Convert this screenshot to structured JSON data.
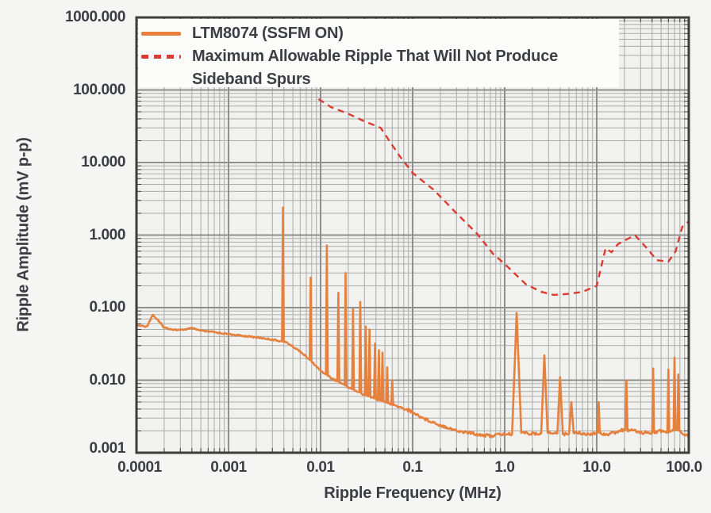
{
  "page": {
    "background": "#F5F5F3"
  },
  "colors": {
    "plot_bg": "#F1F1EF",
    "page_bg": "#F5F5F3",
    "legend_bg": "#FCFCFB",
    "frame": "#3D3D3D",
    "grid_minor": "#ABABAB",
    "grid_major": "#8E8E8E",
    "text": "#3B3E44",
    "orange": "#E5813C",
    "red": "#DE3B30"
  },
  "legend": {
    "item1_label": "LTM8074 (SSFM ON)",
    "item2_label_line1": "Maximum Allowable Ripple That Will Not Produce",
    "item2_label_line2": "Sideband Spurs"
  },
  "axes": {
    "x": {
      "scale": "log",
      "range": [
        0.0001,
        100
      ],
      "tick_labels": [
        "0.0001",
        "0.001",
        "0.01",
        "0.1",
        "1.0",
        "10.0",
        "100.0"
      ]
    },
    "y": {
      "scale": "log",
      "range": [
        0.001,
        1000
      ],
      "tick_labels": [
        "1000.000",
        "100.000",
        "10.000",
        "1.000",
        "0.100",
        "0.010",
        "0.001"
      ]
    }
  },
  "chart_data": {
    "type": "line",
    "xlabel": "Ripple Frequency (MHz)",
    "ylabel": "Ripple Amplitude (mV p-p)",
    "xscale": "log",
    "yscale": "log",
    "xlim": [
      0.0001,
      100
    ],
    "ylim": [
      0.001,
      1000
    ],
    "grid": true,
    "legend_position": "top-left",
    "series": [
      {
        "name": "LTM8074 (SSFM ON)",
        "color": "#E5813C",
        "style": "solid",
        "points": [
          [
            0.0001,
            0.057
          ],
          [
            0.00013,
            0.055
          ],
          [
            0.00015,
            0.08
          ],
          [
            0.00018,
            0.062
          ],
          [
            0.0002,
            0.053
          ],
          [
            0.00025,
            0.05
          ],
          [
            0.0003,
            0.049
          ],
          [
            0.0004,
            0.052
          ],
          [
            0.0005,
            0.048
          ],
          [
            0.0007,
            0.046
          ],
          [
            0.001,
            0.043
          ],
          [
            0.0014,
            0.041
          ],
          [
            0.002,
            0.039
          ],
          [
            0.0027,
            0.037
          ],
          [
            0.0035,
            0.035
          ],
          [
            0.0043,
            0.033
          ],
          [
            0.005,
            0.029
          ],
          [
            0.006,
            0.025
          ],
          [
            0.007,
            0.021
          ],
          [
            0.008,
            0.018
          ],
          [
            0.009,
            0.0155
          ],
          [
            0.01,
            0.0135
          ],
          [
            0.012,
            0.0115
          ],
          [
            0.014,
            0.0102
          ],
          [
            0.017,
            0.009
          ],
          [
            0.02,
            0.008
          ],
          [
            0.025,
            0.007
          ],
          [
            0.03,
            0.0063
          ],
          [
            0.04,
            0.0055
          ],
          [
            0.05,
            0.005
          ],
          [
            0.06,
            0.0046
          ],
          [
            0.07,
            0.0043
          ],
          [
            0.085,
            0.004
          ],
          [
            0.1,
            0.0036
          ],
          [
            0.13,
            0.003
          ],
          [
            0.16,
            0.0027
          ],
          [
            0.2,
            0.0024
          ],
          [
            0.25,
            0.0022
          ],
          [
            0.3,
            0.002
          ],
          [
            0.4,
            0.0019
          ],
          [
            0.5,
            0.0018
          ],
          [
            0.7,
            0.0017
          ],
          [
            0.9,
            0.0018
          ],
          [
            1.2,
            0.0018
          ],
          [
            1.6,
            0.0019
          ],
          [
            2.2,
            0.0018
          ],
          [
            3,
            0.0019
          ],
          [
            4.5,
            0.0018
          ],
          [
            6,
            0.0019
          ],
          [
            8,
            0.0018
          ],
          [
            10,
            0.0019
          ],
          [
            13,
            0.0018
          ],
          [
            16,
            0.0019
          ],
          [
            20,
            0.0021
          ],
          [
            25,
            0.002
          ],
          [
            30,
            0.0019
          ],
          [
            40,
            0.0019
          ],
          [
            50,
            0.002
          ],
          [
            60,
            0.0019
          ],
          [
            75,
            0.0021
          ],
          [
            90,
            0.0018
          ],
          [
            100,
            0.0017
          ]
        ],
        "spikes": [
          [
            0.0039,
            2.4
          ],
          [
            0.0078,
            0.26
          ],
          [
            0.0117,
            0.72
          ],
          [
            0.0156,
            0.16
          ],
          [
            0.0187,
            0.3
          ],
          [
            0.0225,
            0.095
          ],
          [
            0.027,
            0.12
          ],
          [
            0.031,
            0.055
          ],
          [
            0.034,
            0.05
          ],
          [
            0.039,
            0.032
          ],
          [
            0.043,
            0.026
          ],
          [
            0.047,
            0.024
          ],
          [
            0.053,
            0.015
          ],
          [
            0.06,
            0.01
          ],
          [
            1.35,
            0.085,
            0.05
          ],
          [
            2.7,
            0.022,
            0.035
          ],
          [
            4.0,
            0.011,
            0.03
          ],
          [
            5.3,
            0.005,
            0.025
          ],
          [
            10.5,
            0.005,
            0.012
          ],
          [
            21,
            0.01,
            0.012
          ],
          [
            41,
            0.0145,
            0.01
          ],
          [
            60,
            0.014,
            0.01
          ],
          [
            70,
            0.0205,
            0.01
          ],
          [
            77,
            0.012,
            0.01
          ]
        ]
      },
      {
        "name": "Maximum Allowable Ripple That Will Not Produce Sideband Spurs",
        "color": "#DE3B30",
        "style": "dashed",
        "points": [
          [
            0.0095,
            75
          ],
          [
            0.013,
            58
          ],
          [
            0.02,
            47
          ],
          [
            0.03,
            37
          ],
          [
            0.045,
            30
          ],
          [
            0.07,
            13
          ],
          [
            0.1,
            7.2
          ],
          [
            0.17,
            4.2
          ],
          [
            0.3,
            2.0
          ],
          [
            0.5,
            1.05
          ],
          [
            0.75,
            0.55
          ],
          [
            1.0,
            0.4
          ],
          [
            1.7,
            0.21
          ],
          [
            2.5,
            0.165
          ],
          [
            3.4,
            0.15
          ],
          [
            5,
            0.155
          ],
          [
            7,
            0.165
          ],
          [
            10,
            0.2
          ],
          [
            12.5,
            0.66
          ],
          [
            14.5,
            0.58
          ],
          [
            17,
            0.75
          ],
          [
            26,
            1.0
          ],
          [
            35,
            0.66
          ],
          [
            45,
            0.45
          ],
          [
            60,
            0.43
          ],
          [
            72,
            0.6
          ],
          [
            85,
            1.3
          ],
          [
            100,
            1.55
          ]
        ]
      }
    ]
  }
}
